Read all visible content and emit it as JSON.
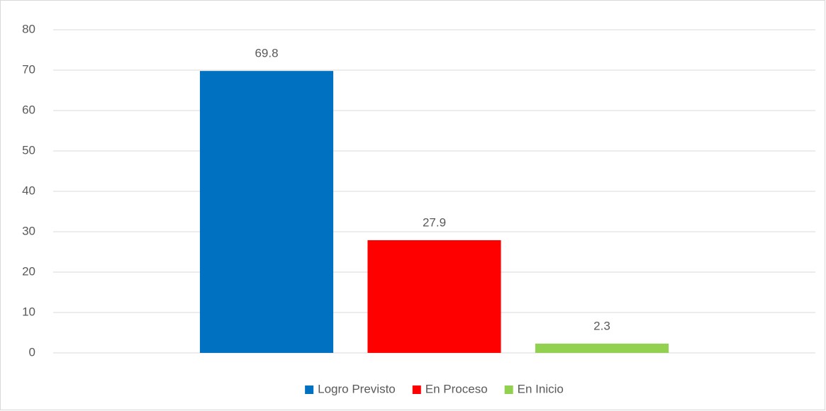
{
  "chart_data": {
    "type": "bar",
    "categories": [
      null
    ],
    "series": [
      {
        "name": "Logro Previsto",
        "color": "#0070c0",
        "values": [
          69.8
        ]
      },
      {
        "name": "En Proceso",
        "color": "#ff0000",
        "values": [
          27.9
        ]
      },
      {
        "name": "En Inicio",
        "color": "#92d050",
        "values": [
          2.3
        ]
      }
    ],
    "ylim": [
      0,
      80
    ],
    "yticks": [
      0,
      10,
      20,
      30,
      40,
      50,
      60,
      70,
      80
    ],
    "grid": true,
    "legend": "bottom"
  }
}
